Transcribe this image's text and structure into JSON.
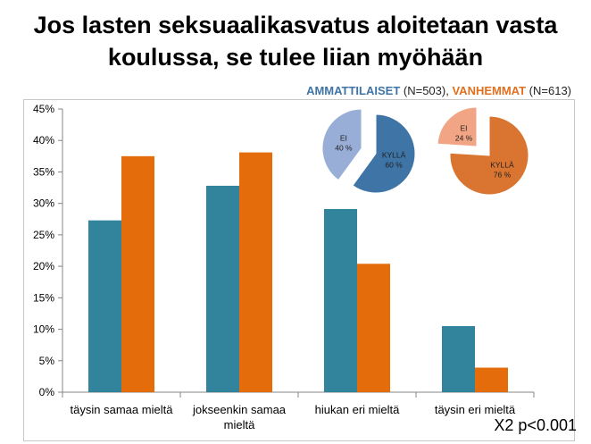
{
  "title_line1": "Jos lasten seksuaalikasvatus aloitetaan vasta",
  "title_line2": "koulussa, se tulee liian myöhään",
  "legend": {
    "series1_label": "AMMATTILAISET",
    "series1_n": "(N=503),",
    "series2_label": "VANHEMMAT",
    "series2_n": "(N=613)"
  },
  "stat_note": "X2 p<0.001",
  "chart_data": [
    {
      "type": "bar",
      "categories": [
        "täysin samaa mieltä",
        "jokseenkin samaa mieltä",
        "hiukan eri mieltä",
        "täysin eri mieltä"
      ],
      "category_lines": [
        [
          "täysin samaa mieltä"
        ],
        [
          "jokseenkin samaa",
          "mieltä"
        ],
        [
          "hiukan eri mieltä"
        ],
        [
          "täysin eri mieltä"
        ]
      ],
      "series": [
        {
          "name": "AMMATTILAISET",
          "color": "#31849b",
          "values": [
            27.3,
            32.8,
            29.1,
            10.5
          ]
        },
        {
          "name": "VANHEMMAT",
          "color": "#e46c0a",
          "values": [
            37.5,
            38.1,
            20.4,
            3.9
          ]
        }
      ],
      "ylim": [
        0,
        45
      ],
      "yticks": [
        "0%",
        "5%",
        "10%",
        "15%",
        "20%",
        "25%",
        "30%",
        "35%",
        "40%",
        "45%"
      ],
      "ytick_values": [
        0,
        5,
        10,
        15,
        20,
        25,
        30,
        35,
        40,
        45
      ],
      "grid": false,
      "xlabel": "",
      "ylabel": ""
    },
    {
      "type": "pie",
      "series_name": "AMMATTILAISET",
      "slices": [
        {
          "label": "KYLLÄ",
          "value": 60,
          "value_label": "60 %",
          "color": "#3f74a6"
        },
        {
          "label": "EI",
          "value": 40,
          "value_label": "40 %",
          "color": "#98aed6"
        }
      ]
    },
    {
      "type": "pie",
      "series_name": "VANHEMMAT",
      "slices": [
        {
          "label": "KYLLÄ",
          "value": 76,
          "value_label": "76 %",
          "color": "#d97530"
        },
        {
          "label": "EI",
          "value": 24,
          "value_label": "24 %",
          "color": "#f2a585"
        }
      ]
    }
  ]
}
